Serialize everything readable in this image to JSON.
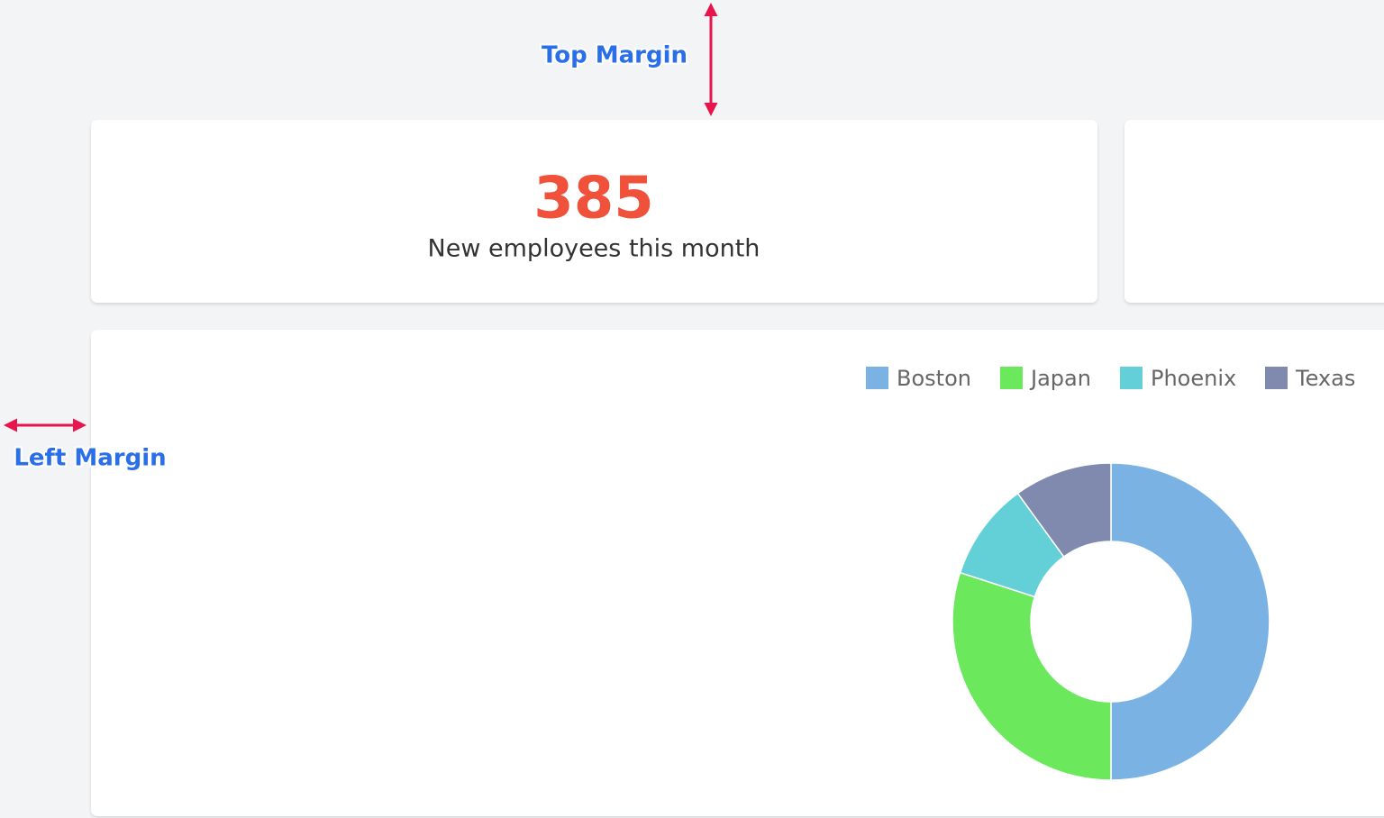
{
  "annotations": {
    "top": "Top Margin",
    "left": "Left Margin"
  },
  "stat_card": {
    "value": 385,
    "label": "New employees this month"
  },
  "chart_data": {
    "type": "pie",
    "donut": true,
    "categories": [
      "Boston",
      "Japan",
      "Phoenix",
      "Texas"
    ],
    "values": [
      50,
      30,
      10,
      10
    ],
    "colors": [
      "#7ab3e3",
      "#6be85c",
      "#63d0d8",
      "#7f8aae"
    ],
    "legend": "top-right"
  }
}
